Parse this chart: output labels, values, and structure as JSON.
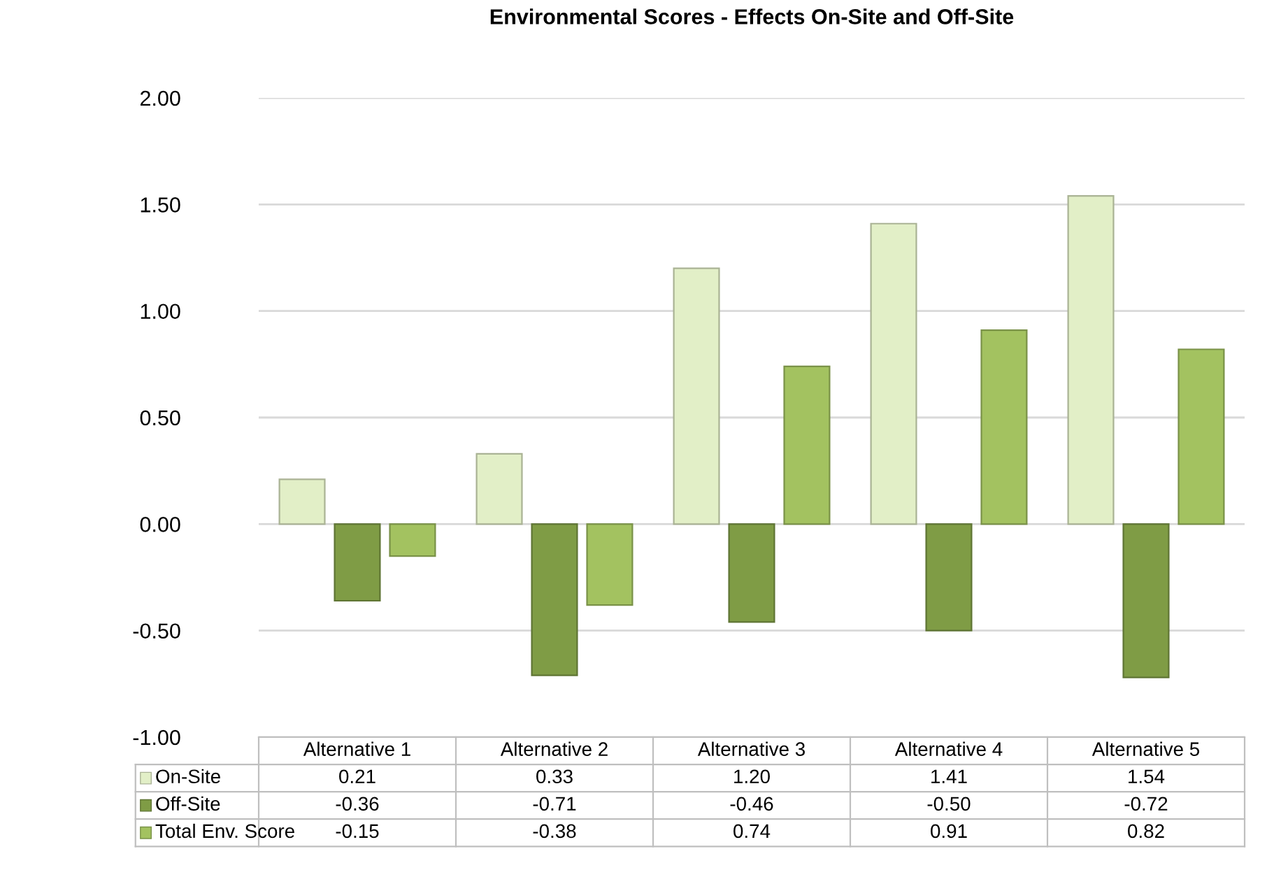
{
  "chart_data": {
    "type": "bar",
    "title": "Environmental Scores - Effects On-Site and Off-Site",
    "categories": [
      "Alternative 1",
      "Alternative 2",
      "Alternative 3",
      "Alternative 4",
      "Alternative 5"
    ],
    "series": [
      {
        "name": "On-Site",
        "color": "#e2efc7",
        "values": [
          0.21,
          0.33,
          1.2,
          1.41,
          1.54
        ],
        "value_labels": [
          "0.21",
          "0.33",
          "1.20",
          "1.41",
          "1.54"
        ]
      },
      {
        "name": "Off-Site",
        "color": "#7f9c45",
        "values": [
          -0.36,
          -0.71,
          -0.46,
          -0.5,
          -0.72
        ],
        "value_labels": [
          "-0.36",
          "-0.71",
          "-0.46",
          "-0.50",
          "-0.72"
        ]
      },
      {
        "name": "Total Env. Score",
        "color": "#a3c260",
        "values": [
          -0.15,
          -0.38,
          0.74,
          0.91,
          0.82
        ],
        "value_labels": [
          "-0.15",
          "-0.38",
          "0.74",
          "0.91",
          "0.82"
        ]
      }
    ],
    "ylim": [
      -1,
      2
    ],
    "yticks": [
      {
        "value": -1,
        "label": "-1.00"
      },
      {
        "value": -0.5,
        "label": "-0.50"
      },
      {
        "value": 0,
        "label": "0.00"
      },
      {
        "value": 0.5,
        "label": "0.50"
      },
      {
        "value": 1,
        "label": "1.00"
      },
      {
        "value": 1.5,
        "label": "1.50"
      },
      {
        "value": 2,
        "label": "2.00"
      }
    ],
    "grid": "y",
    "legend": "bottom left"
  }
}
